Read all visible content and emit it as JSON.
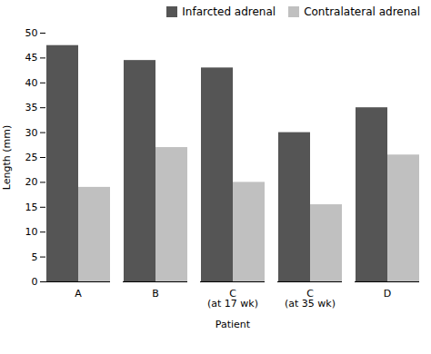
{
  "chart_data": {
    "type": "bar",
    "categories": [
      "A",
      "B",
      "C\n(at 17 wk)",
      "C\n(at 35 wk)",
      "D"
    ],
    "series": [
      {
        "name": "Infarcted adrenal",
        "color": "#555555",
        "values": [
          47.5,
          44.5,
          43,
          30,
          35
        ]
      },
      {
        "name": "Contralateral adrenal",
        "color": "#c0c0c0",
        "values": [
          19,
          27,
          20,
          15.5,
          25.5
        ]
      }
    ],
    "xlabel": "Patient",
    "ylabel": "Length (mm)",
    "ylim": [
      0,
      50
    ],
    "yticks": [
      0,
      5,
      10,
      15,
      20,
      25,
      30,
      35,
      40,
      45,
      50
    ],
    "grid": false,
    "legend": "upper right"
  }
}
